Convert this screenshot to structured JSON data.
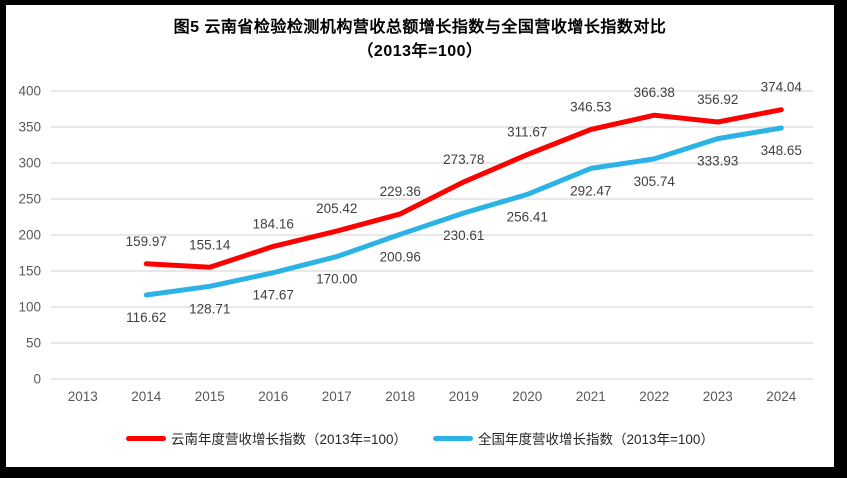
{
  "title": {
    "line1": "图5  云南省检验检测机构营收总额增长指数与全国营收增长指数对比",
    "line2": "（2013年=100）"
  },
  "chart_data": {
    "type": "line",
    "categories": [
      "2013",
      "2014",
      "2015",
      "2016",
      "2017",
      "2018",
      "2019",
      "2020",
      "2021",
      "2022",
      "2023",
      "2024"
    ],
    "series": [
      {
        "name": "云南年度营收增长指数（2013年=100）",
        "color": "#FF0000",
        "values": [
          null,
          159.97,
          155.14,
          184.16,
          205.42,
          229.36,
          273.78,
          311.67,
          346.53,
          366.38,
          356.92,
          374.04
        ],
        "label_position": "above"
      },
      {
        "name": "全国年度营收增长指数（2013年=100）",
        "color": "#2BB3E6",
        "values": [
          null,
          116.62,
          128.71,
          147.67,
          170.0,
          200.96,
          230.61,
          256.41,
          292.47,
          305.74,
          333.93,
          348.65
        ],
        "label_position": "below"
      }
    ],
    "ylim": [
      0,
      400
    ],
    "ytick_step": 50,
    "grid": true,
    "legend_position": "bottom",
    "value_label_decimals": 2,
    "colors": {
      "grid": "#D9D9D9",
      "tick_label": "#595959",
      "value_label": "#404040",
      "title": "#000000",
      "frame": "#000000",
      "background": "#FFFFFF"
    }
  }
}
